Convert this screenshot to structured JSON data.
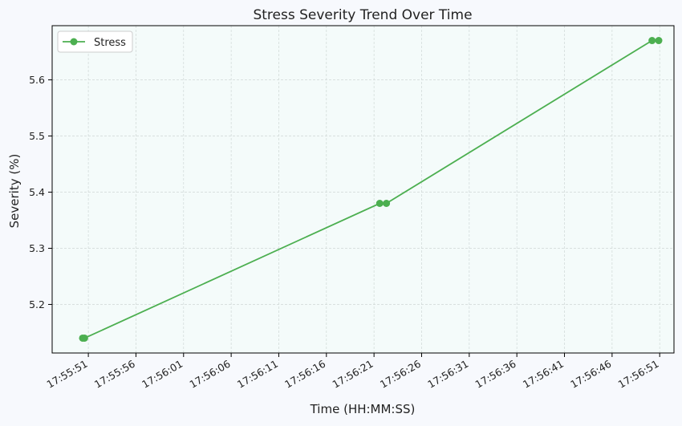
{
  "chart_data": {
    "type": "line",
    "title": "Stress Severity Trend Over Time",
    "xlabel": "Time (HH:MM:SS)",
    "ylabel": "Severity (%)",
    "x_ticks": [
      "17:55:51",
      "17:55:56",
      "17:56:01",
      "17:56:06",
      "17:56:11",
      "17:56:16",
      "17:56:21",
      "17:56:26",
      "17:56:31",
      "17:56:36",
      "17:56:41",
      "17:56:46",
      "17:56:51"
    ],
    "y_ticks": [
      5.2,
      5.3,
      5.4,
      5.5,
      5.6
    ],
    "xlim": [
      "17:55:47.2",
      "17:56:52.5"
    ],
    "ylim": [
      5.1135,
      5.6965
    ],
    "grid": true,
    "legend_position": "top-left",
    "series": [
      {
        "name": "Stress",
        "color": "#4caf50",
        "points": [
          {
            "x": "17:55:50.4",
            "y": 5.14
          },
          {
            "x": "17:55:50.6",
            "y": 5.14
          },
          {
            "x": "17:56:21.6",
            "y": 5.38
          },
          {
            "x": "17:56:22.3",
            "y": 5.38
          },
          {
            "x": "17:56:50.2",
            "y": 5.67
          },
          {
            "x": "17:56:50.9",
            "y": 5.67
          }
        ]
      }
    ],
    "plot_background": "#f4fbfa",
    "page_background": "#f7f9fd"
  }
}
